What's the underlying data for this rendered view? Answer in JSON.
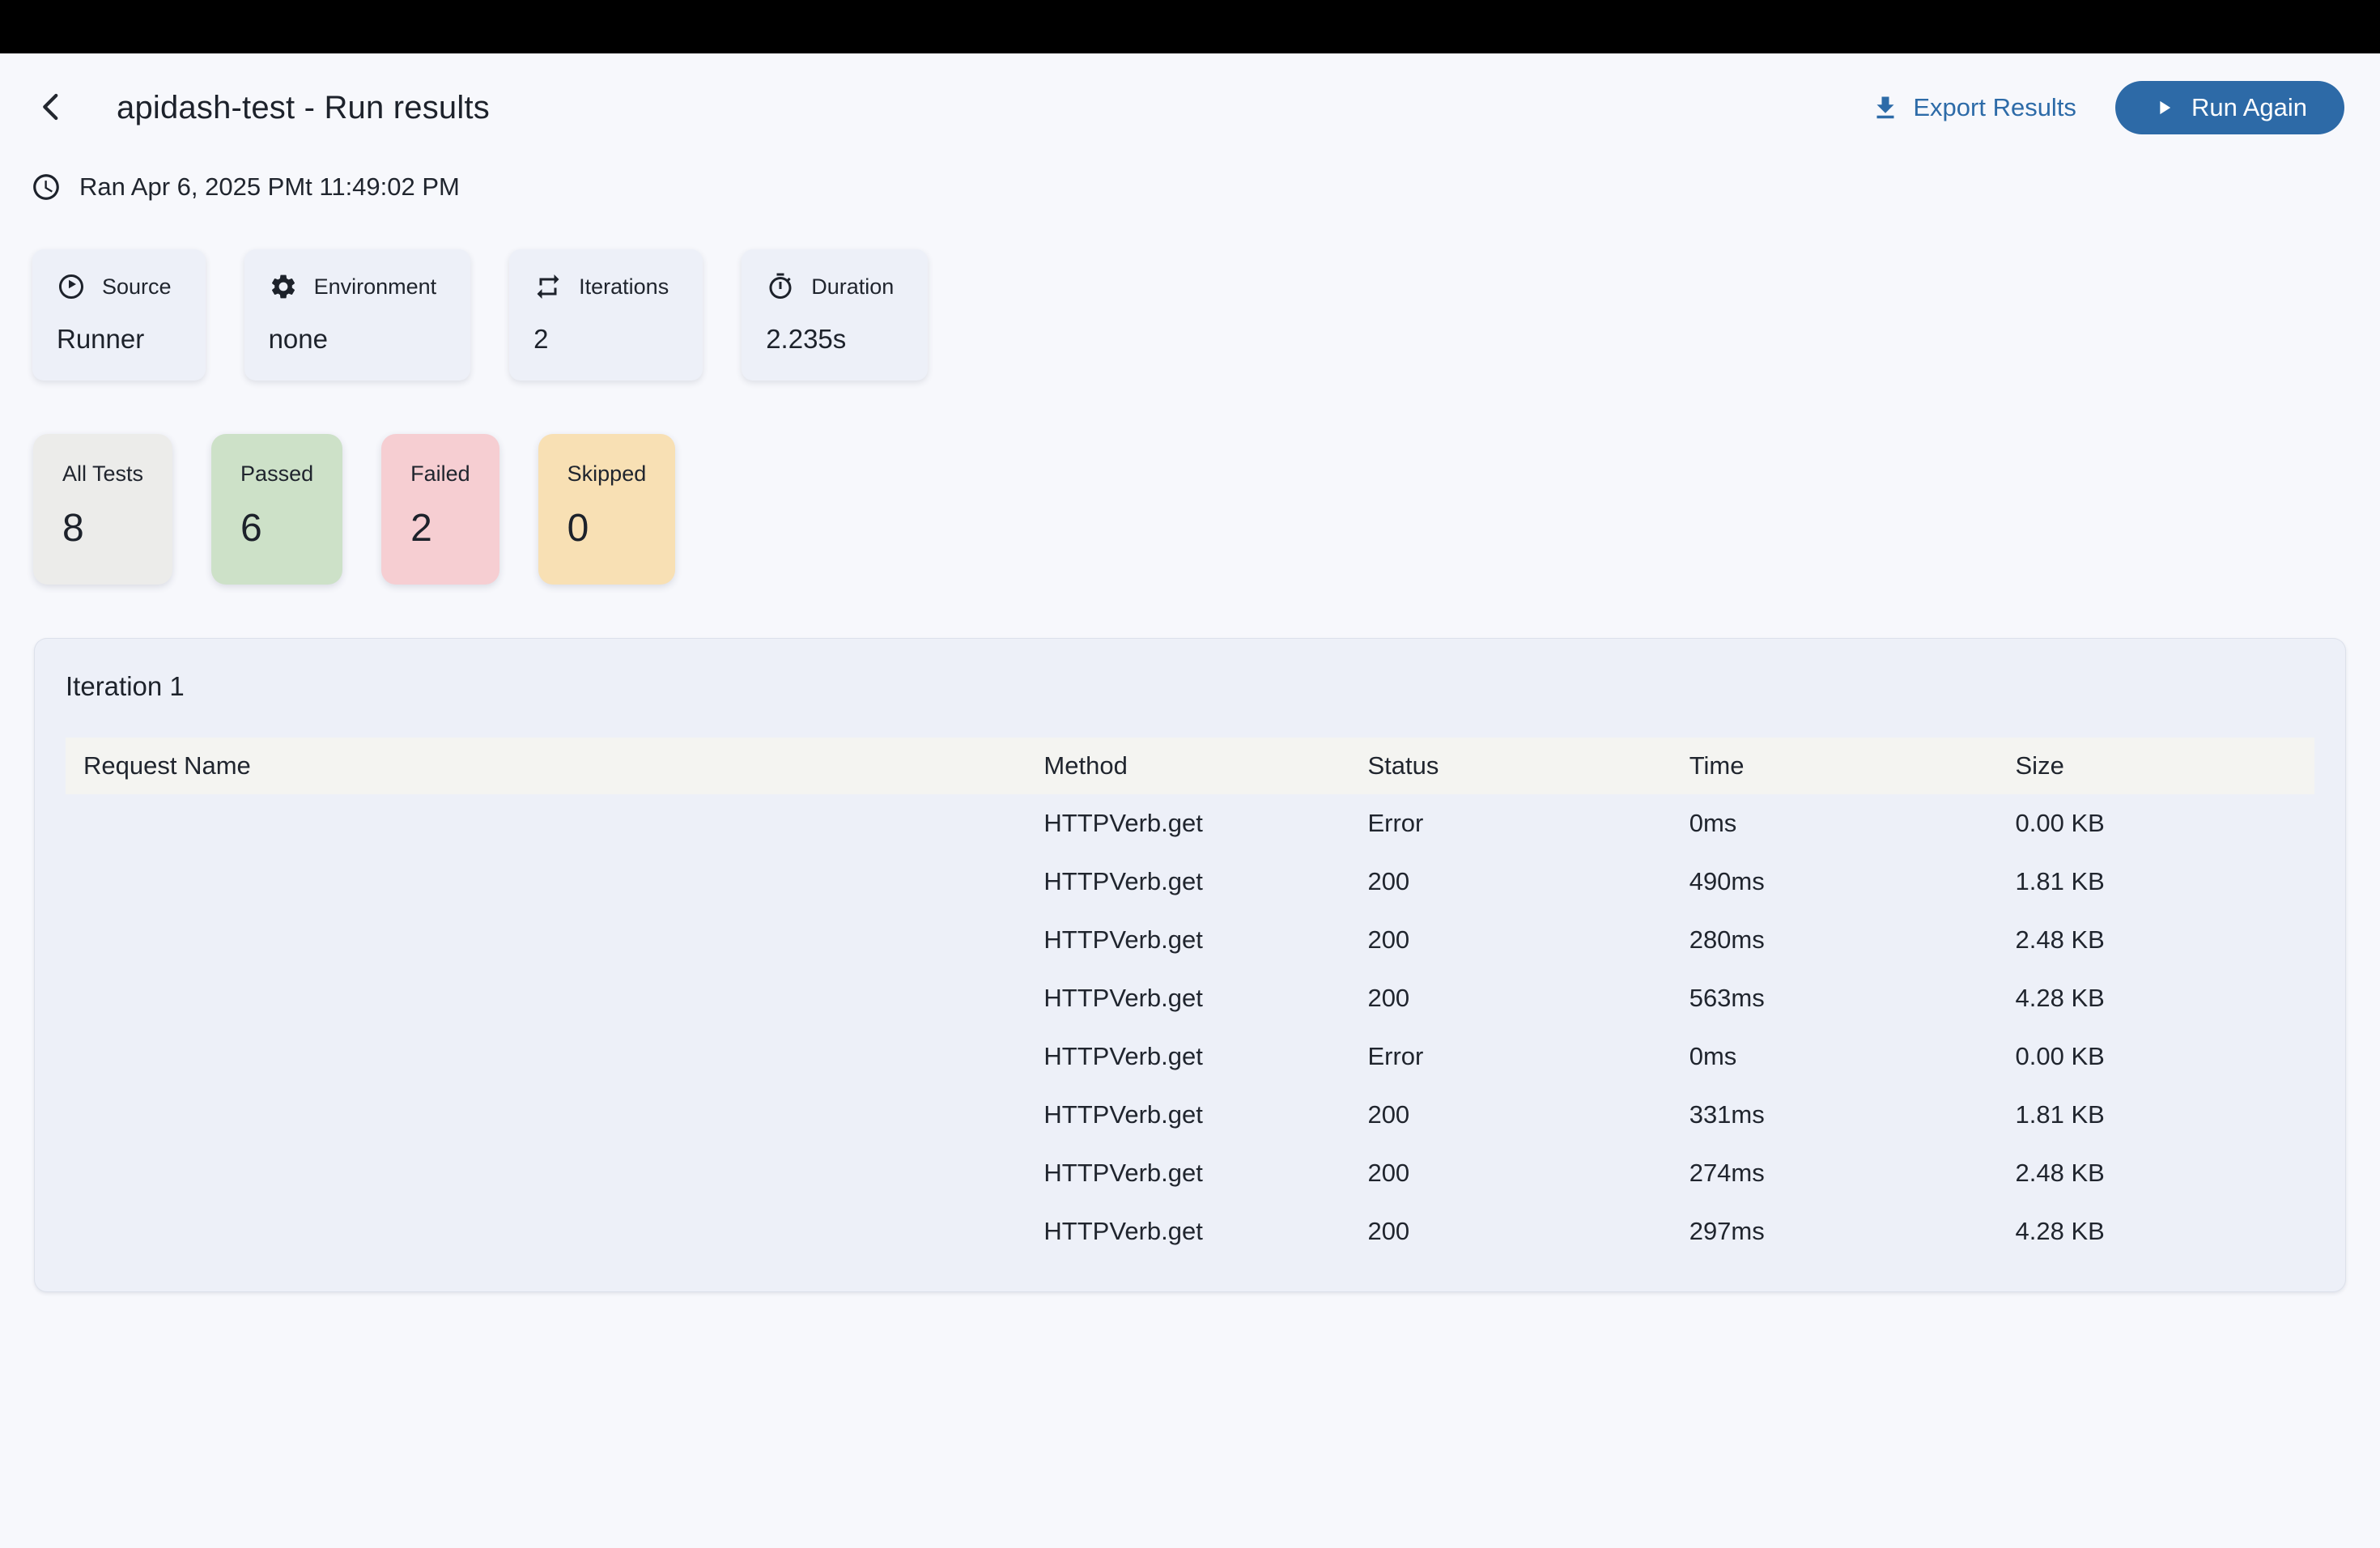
{
  "header": {
    "title": "apidash-test - Run results",
    "back_icon": "chevron-left-icon",
    "export": {
      "label": "Export Results",
      "icon": "download-icon"
    },
    "run_again": {
      "label": "Run Again",
      "icon": "play-icon"
    }
  },
  "meta": {
    "ran_text": "Ran Apr 6, 2025 PMt 11:49:02 PM",
    "icon": "clock-icon"
  },
  "info_cards": [
    {
      "icon": "play-circle-icon",
      "label": "Source",
      "value": "Runner"
    },
    {
      "icon": "gear-icon",
      "label": "Environment",
      "value": "none"
    },
    {
      "icon": "repeat-icon",
      "label": "Iterations",
      "value": "2"
    },
    {
      "icon": "stopwatch-icon",
      "label": "Duration",
      "value": "2.235s"
    }
  ],
  "stat_cards": [
    {
      "label": "All Tests",
      "value": "8",
      "bg": "#ececea"
    },
    {
      "label": "Passed",
      "value": "6",
      "bg": "#cde1c8"
    },
    {
      "label": "Failed",
      "value": "2",
      "bg": "#f6ced2"
    },
    {
      "label": "Skipped",
      "value": "0",
      "bg": "#f8e0b4"
    }
  ],
  "iteration": {
    "title": "Iteration 1",
    "columns": [
      "Request Name",
      "Method",
      "Status",
      "Time",
      "Size"
    ],
    "rows": [
      {
        "name": "",
        "method": "HTTPVerb.get",
        "status": "Error",
        "state": "error",
        "time": "0ms",
        "size": "0.00 KB"
      },
      {
        "name": "",
        "method": "HTTPVerb.get",
        "status": "200",
        "state": "ok",
        "time": "490ms",
        "size": "1.81 KB"
      },
      {
        "name": "",
        "method": "HTTPVerb.get",
        "status": "200",
        "state": "ok",
        "time": "280ms",
        "size": "2.48 KB"
      },
      {
        "name": "",
        "method": "HTTPVerb.get",
        "status": "200",
        "state": "ok",
        "time": "563ms",
        "size": "4.28 KB"
      },
      {
        "name": "",
        "method": "HTTPVerb.get",
        "status": "Error",
        "state": "error",
        "time": "0ms",
        "size": "0.00 KB"
      },
      {
        "name": "",
        "method": "HTTPVerb.get",
        "status": "200",
        "state": "ok",
        "time": "331ms",
        "size": "1.81 KB"
      },
      {
        "name": "",
        "method": "HTTPVerb.get",
        "status": "200",
        "state": "ok",
        "time": "274ms",
        "size": "2.48 KB"
      },
      {
        "name": "",
        "method": "HTTPVerb.get",
        "status": "200",
        "state": "ok",
        "time": "297ms",
        "size": "4.28 KB"
      }
    ]
  },
  "colors": {
    "accent_blue": "#2d6aa7",
    "status_error": "#dd5447",
    "status_ok": "#57a55c",
    "page_bg": "#f7f8fc",
    "card_bg": "#edf0f8",
    "table_header_bg": "#f4f4f1",
    "topbar_bg": "#000000"
  }
}
